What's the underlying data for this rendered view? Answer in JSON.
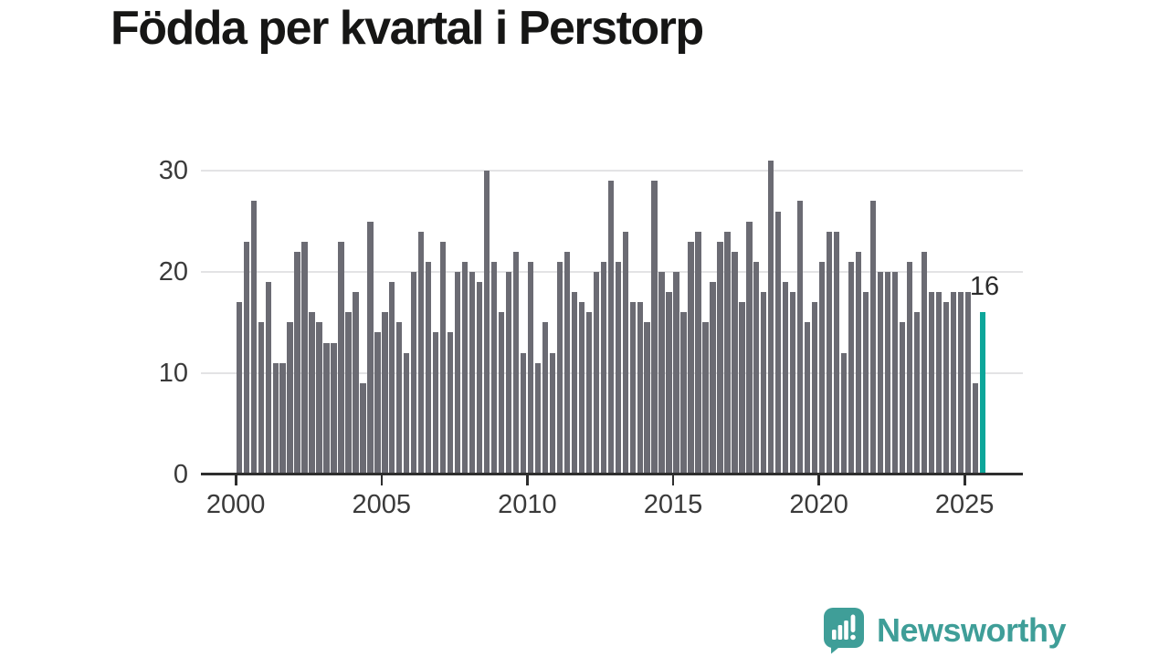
{
  "title": "Födda per kvartal i Perstorp",
  "chart_data": {
    "type": "bar",
    "title": "Födda per kvartal i Perstorp",
    "frequency": "quarterly",
    "x_start": "2000-Q1",
    "x_end": "2025-Q3",
    "values": [
      17,
      23,
      27,
      15,
      19,
      11,
      11,
      15,
      22,
      23,
      16,
      15,
      13,
      13,
      23,
      16,
      18,
      9,
      25,
      14,
      16,
      19,
      15,
      12,
      20,
      24,
      21,
      14,
      23,
      14,
      20,
      21,
      20,
      19,
      30,
      21,
      16,
      20,
      22,
      12,
      21,
      11,
      15,
      12,
      21,
      22,
      18,
      17,
      16,
      20,
      21,
      29,
      21,
      24,
      17,
      17,
      15,
      29,
      20,
      18,
      20,
      16,
      23,
      24,
      15,
      19,
      23,
      24,
      22,
      17,
      25,
      21,
      18,
      31,
      26,
      19,
      18,
      27,
      15,
      17,
      21,
      24,
      24,
      12,
      21,
      22,
      18,
      27,
      20,
      20,
      20,
      15,
      21,
      16,
      22,
      18,
      18,
      17,
      18,
      18,
      18,
      9,
      16
    ],
    "start_year": 2000,
    "highlight_last": true,
    "highlight_value_label": "16",
    "y_axis": {
      "tick_labels": [
        "0",
        "10",
        "20",
        "30"
      ],
      "tick_values": [
        0,
        10,
        20,
        30
      ],
      "grid_values": [
        10,
        20,
        30
      ],
      "max": 31
    },
    "x_axis": {
      "tick_labels": [
        "2000",
        "2005",
        "2010",
        "2015",
        "2020",
        "2025"
      ],
      "tick_years": [
        2000,
        2005,
        2010,
        2015,
        2020,
        2025
      ]
    },
    "colors": {
      "bar": "#6b6b73",
      "highlight": "#0da69a",
      "gridline": "#e3e3e5",
      "axis": "#2e2e2e",
      "tick_text": "#3a3a3a",
      "annotation_text": "#2b2b2b"
    },
    "legend": "none",
    "grid": "horizontal"
  },
  "annotation": {
    "latest_value": "16"
  },
  "branding": {
    "name": "Newsworthy",
    "color": "#3f9e98",
    "icon": "newsworthy-logo-icon"
  }
}
